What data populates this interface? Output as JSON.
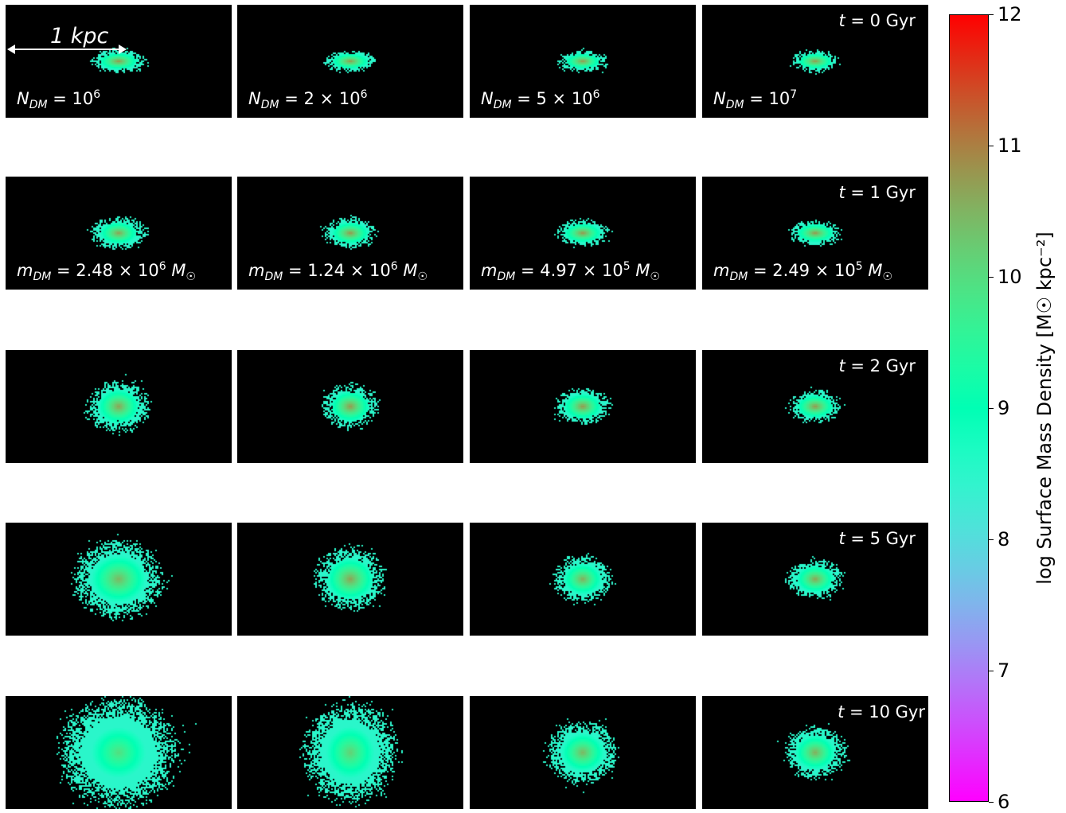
{
  "chart_data": {
    "type": "heatmap",
    "layout": "grid 5 rows x 4 columns of surface density maps",
    "scale_bar_label": "1 kpc",
    "rows_time": [
      "t = 0 Gyr",
      "t = 1 Gyr",
      "t = 2 Gyr",
      "t = 5 Gyr",
      "t = 10 Gyr"
    ],
    "columns_N_DM": [
      "N_DM = 10^6",
      "N_DM = 2 × 10^6",
      "N_DM = 5 × 10^6",
      "N_DM = 10^7"
    ],
    "columns_m_DM": [
      "m_DM = 2.48 × 10^6 M☉",
      "m_DM = 1.24 × 10^6 M☉",
      "m_DM = 4.97 × 10^5 M☉",
      "m_DM = 2.49 × 10^5 M☉"
    ],
    "colorbar": {
      "label": "log Surface Mass Density [M☉ kpc⁻²]",
      "range": [
        6,
        12
      ],
      "ticks": [
        6,
        7,
        8,
        9,
        10,
        11,
        12
      ],
      "colormap": "rainbow"
    },
    "panel_extent": {
      "comment": "relative stellar distribution extent per panel (fraction of panel size), read visually",
      "rows": [
        [
          [
            0.2,
            0.13
          ],
          [
            0.19,
            0.12
          ],
          [
            0.18,
            0.12
          ],
          [
            0.18,
            0.12
          ]
        ],
        [
          [
            0.2,
            0.18
          ],
          [
            0.19,
            0.17
          ],
          [
            0.19,
            0.15
          ],
          [
            0.19,
            0.14
          ]
        ],
        [
          [
            0.22,
            0.28
          ],
          [
            0.2,
            0.24
          ],
          [
            0.19,
            0.2
          ],
          [
            0.19,
            0.18
          ]
        ],
        [
          [
            0.32,
            0.42
          ],
          [
            0.25,
            0.34
          ],
          [
            0.21,
            0.26
          ],
          [
            0.2,
            0.22
          ]
        ],
        [
          [
            0.42,
            0.6
          ],
          [
            0.33,
            0.54
          ],
          [
            0.25,
            0.34
          ],
          [
            0.22,
            0.29
          ]
        ]
      ]
    },
    "peak_log_density": [
      [
        10.8,
        10.8,
        10.8,
        10.8
      ],
      [
        10.7,
        10.8,
        10.8,
        10.8
      ],
      [
        10.7,
        10.8,
        10.8,
        10.8
      ],
      [
        10.5,
        10.7,
        10.6,
        10.7
      ],
      [
        10.0,
        10.2,
        10.5,
        10.6
      ]
    ]
  }
}
